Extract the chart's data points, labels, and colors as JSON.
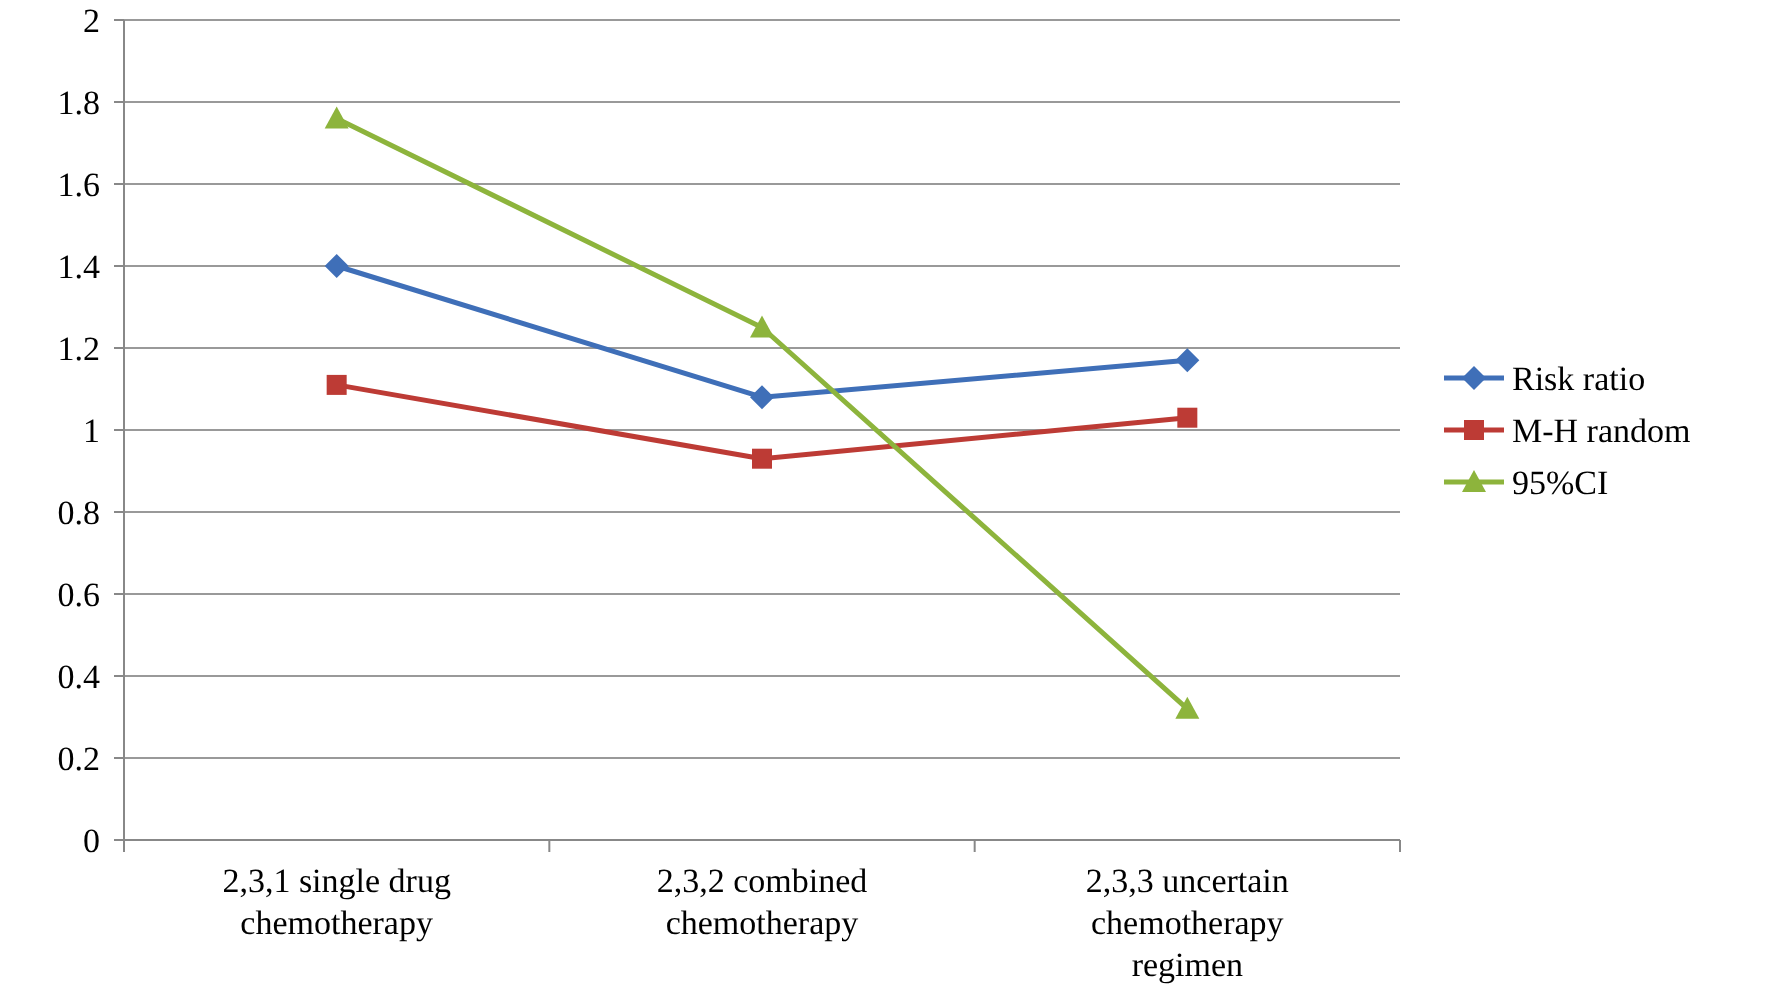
{
  "chart_data": {
    "type": "line",
    "categories": [
      "2,3,1 single drug chemotherapy",
      "2,3,2 combined chemotherapy",
      "2,3,3 uncertain chemotherapy regimen"
    ],
    "series": [
      {
        "name": "Risk ratio",
        "color": "#3f6fb8",
        "marker": "diamond",
        "values": [
          1.4,
          1.08,
          1.17
        ]
      },
      {
        "name": "M-H random",
        "color": "#bd3b35",
        "marker": "square",
        "values": [
          1.11,
          0.93,
          1.03
        ]
      },
      {
        "name": "95%CI",
        "color": "#8db43c",
        "marker": "triangle",
        "values": [
          1.76,
          1.25,
          0.32
        ]
      }
    ],
    "ylim": [
      0,
      2
    ],
    "yticks": [
      0,
      0.2,
      0.4,
      0.6,
      0.8,
      1,
      1.2,
      1.4,
      1.6,
      1.8,
      2
    ],
    "grid": "y",
    "legend": "right"
  }
}
